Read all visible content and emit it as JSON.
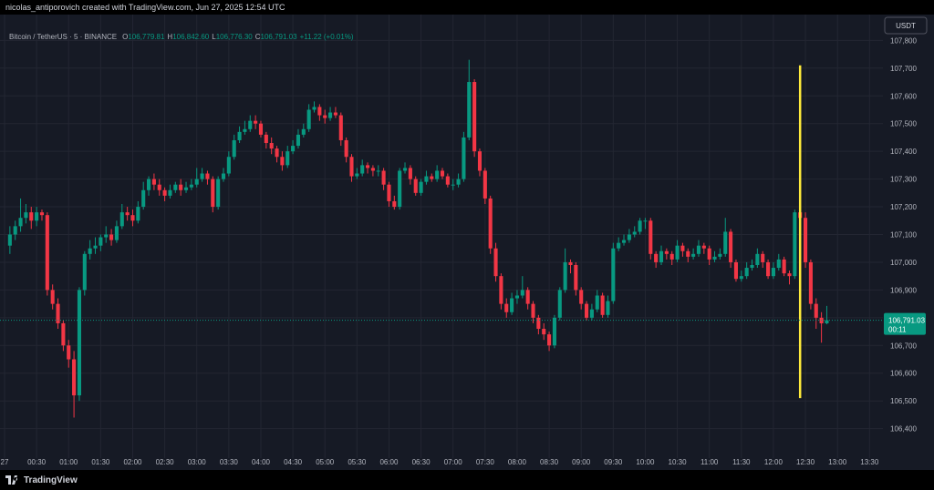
{
  "header": {
    "attribution": "nicolas_antiporovich created with TradingView.com, Jun 27, 2025 12:54 UTC"
  },
  "legend": {
    "symbol": "Bitcoin / TetherUS · 5 · BINANCE",
    "items": [
      {
        "key": "O",
        "value": "106,779.81"
      },
      {
        "key": "H",
        "value": "106,842.60"
      },
      {
        "key": "L",
        "value": "106,776.30"
      },
      {
        "key": "C",
        "value": "106,791.03"
      }
    ],
    "change": "+11.22 (+0.01%)"
  },
  "footer": {
    "brand": "TradingView"
  },
  "chart_data": {
    "type": "candlestick",
    "currency": "USDT",
    "up_color": "#089981",
    "down_color": "#f23645",
    "background": "#161a25",
    "grid_color": "#232632",
    "grid": true,
    "xlim": [
      "00:00",
      "13:40"
    ],
    "ylim": [
      106320,
      107880
    ],
    "xticks": [
      {
        "value": "00:00",
        "label": "27"
      },
      "00:30",
      "01:00",
      "01:30",
      "02:00",
      "02:30",
      "03:00",
      "03:30",
      "04:00",
      "04:30",
      "05:00",
      "05:30",
      "06:00",
      "06:30",
      "07:00",
      "07:30",
      "08:00",
      "08:30",
      "09:00",
      "09:30",
      "10:00",
      "10:30",
      "11:00",
      "11:30",
      "12:00",
      "12:30",
      "13:00",
      "13:30"
    ],
    "yticks": [
      {
        "value": 106400,
        "label": "106,400"
      },
      {
        "value": 106500,
        "label": "106,500"
      },
      {
        "value": 106600,
        "label": "106,600"
      },
      {
        "value": 106700,
        "label": "106,700"
      },
      {
        "value": 106800,
        "label": "106,800"
      },
      {
        "value": 106900,
        "label": "106,900"
      },
      {
        "value": 107000,
        "label": "107,000"
      },
      {
        "value": 107100,
        "label": "107,100"
      },
      {
        "value": 107200,
        "label": "107,200"
      },
      {
        "value": 107300,
        "label": "107,300"
      },
      {
        "value": 107400,
        "label": "107,400"
      },
      {
        "value": 107500,
        "label": "107,500"
      },
      {
        "value": 107600,
        "label": "107,600"
      },
      {
        "value": 107700,
        "label": "107,700"
      },
      {
        "value": 107800,
        "label": "107,800"
      }
    ],
    "last_price": {
      "value": 106791.03,
      "label": "106,791.03",
      "countdown": "00:11"
    },
    "vertical_line": {
      "x": "12:25",
      "from": 106510,
      "to": 107710,
      "color": "#ffeb3b"
    },
    "x": [
      "00:05",
      "00:10",
      "00:15",
      "00:20",
      "00:25",
      "00:30",
      "00:35",
      "00:40",
      "00:45",
      "00:50",
      "00:55",
      "01:00",
      "01:05",
      "01:10",
      "01:15",
      "01:20",
      "01:25",
      "01:30",
      "01:35",
      "01:40",
      "01:45",
      "01:50",
      "01:55",
      "02:00",
      "02:05",
      "02:10",
      "02:15",
      "02:20",
      "02:25",
      "02:30",
      "02:35",
      "02:40",
      "02:45",
      "02:50",
      "02:55",
      "03:00",
      "03:05",
      "03:10",
      "03:15",
      "03:20",
      "03:25",
      "03:30",
      "03:35",
      "03:40",
      "03:45",
      "03:50",
      "03:55",
      "04:00",
      "04:05",
      "04:10",
      "04:15",
      "04:20",
      "04:25",
      "04:30",
      "04:35",
      "04:40",
      "04:45",
      "04:50",
      "04:55",
      "05:00",
      "05:05",
      "05:10",
      "05:15",
      "05:20",
      "05:25",
      "05:30",
      "05:35",
      "05:40",
      "05:45",
      "05:50",
      "05:55",
      "06:00",
      "06:05",
      "06:10",
      "06:15",
      "06:20",
      "06:25",
      "06:30",
      "06:35",
      "06:40",
      "06:45",
      "06:50",
      "06:55",
      "07:00",
      "07:05",
      "07:10",
      "07:15",
      "07:20",
      "07:25",
      "07:30",
      "07:35",
      "07:40",
      "07:45",
      "07:50",
      "07:55",
      "08:00",
      "08:05",
      "08:10",
      "08:15",
      "08:20",
      "08:25",
      "08:30",
      "08:35",
      "08:40",
      "08:45",
      "08:50",
      "08:55",
      "09:00",
      "09:05",
      "09:10",
      "09:15",
      "09:20",
      "09:25",
      "09:30",
      "09:35",
      "09:40",
      "09:45",
      "09:50",
      "09:55",
      "10:00",
      "10:05",
      "10:10",
      "10:15",
      "10:20",
      "10:25",
      "10:30",
      "10:35",
      "10:40",
      "10:45",
      "10:50",
      "10:55",
      "11:00",
      "11:05",
      "11:10",
      "11:15",
      "11:20",
      "11:25",
      "11:30",
      "11:35",
      "11:40",
      "11:45",
      "11:50",
      "11:55",
      "12:00",
      "12:05",
      "12:10",
      "12:15",
      "12:20",
      "12:25",
      "12:30",
      "12:35",
      "12:40",
      "12:45",
      "12:50"
    ],
    "candles": [
      [
        107060,
        107130,
        107030,
        107100
      ],
      [
        107100,
        107150,
        107080,
        107130
      ],
      [
        107130,
        107230,
        107110,
        107160
      ],
      [
        107160,
        107210,
        107140,
        107180
      ],
      [
        107180,
        107200,
        107120,
        107150
      ],
      [
        107150,
        107200,
        107130,
        107180
      ],
      [
        107180,
        107190,
        107150,
        107170
      ],
      [
        107170,
        107180,
        106880,
        106900
      ],
      [
        106900,
        106920,
        106830,
        106850
      ],
      [
        106850,
        106870,
        106760,
        106780
      ],
      [
        106780,
        106790,
        106680,
        106700
      ],
      [
        106700,
        106720,
        106620,
        106650
      ],
      [
        106650,
        106680,
        106440,
        106520
      ],
      [
        106520,
        106910,
        106500,
        106900
      ],
      [
        106900,
        107040,
        106880,
        107030
      ],
      [
        107030,
        107080,
        107010,
        107050
      ],
      [
        107050,
        107090,
        107030,
        107060
      ],
      [
        107060,
        107100,
        107040,
        107090
      ],
      [
        107090,
        107130,
        107070,
        107100
      ],
      [
        107100,
        107120,
        107060,
        107080
      ],
      [
        107080,
        107150,
        107070,
        107130
      ],
      [
        107130,
        107210,
        107120,
        107180
      ],
      [
        107180,
        107200,
        107150,
        107170
      ],
      [
        107170,
        107190,
        107130,
        107150
      ],
      [
        107150,
        107220,
        107140,
        107200
      ],
      [
        107200,
        107290,
        107190,
        107260
      ],
      [
        107260,
        107310,
        107240,
        107300
      ],
      [
        107300,
        107320,
        107260,
        107280
      ],
      [
        107280,
        107300,
        107240,
        107260
      ],
      [
        107260,
        107270,
        107220,
        107240
      ],
      [
        107240,
        107280,
        107230,
        107260
      ],
      [
        107260,
        107290,
        107250,
        107280
      ],
      [
        107280,
        107300,
        107240,
        107260
      ],
      [
        107260,
        107290,
        107250,
        107270
      ],
      [
        107270,
        107300,
        107260,
        107280
      ],
      [
        107280,
        107340,
        107270,
        107300
      ],
      [
        107300,
        107340,
        107290,
        107320
      ],
      [
        107320,
        107330,
        107280,
        107300
      ],
      [
        107300,
        107310,
        107180,
        107200
      ],
      [
        107200,
        107310,
        107190,
        107300
      ],
      [
        107300,
        107340,
        107290,
        107320
      ],
      [
        107320,
        107400,
        107310,
        107380
      ],
      [
        107380,
        107460,
        107370,
        107440
      ],
      [
        107440,
        107490,
        107430,
        107470
      ],
      [
        107470,
        107510,
        107460,
        107480
      ],
      [
        107480,
        107530,
        107470,
        107510
      ],
      [
        107510,
        107530,
        107480,
        107500
      ],
      [
        107500,
        107510,
        107450,
        107460
      ],
      [
        107460,
        107470,
        107410,
        107430
      ],
      [
        107430,
        107450,
        107390,
        107410
      ],
      [
        107410,
        107420,
        107360,
        107380
      ],
      [
        107380,
        107400,
        107330,
        107350
      ],
      [
        107350,
        107420,
        107340,
        107400
      ],
      [
        107400,
        107440,
        107390,
        107420
      ],
      [
        107420,
        107480,
        107410,
        107460
      ],
      [
        107460,
        107500,
        107450,
        107480
      ],
      [
        107480,
        107570,
        107470,
        107550
      ],
      [
        107550,
        107580,
        107540,
        107560
      ],
      [
        107560,
        107570,
        107510,
        107530
      ],
      [
        107530,
        107550,
        107500,
        107520
      ],
      [
        107520,
        107560,
        107510,
        107540
      ],
      [
        107540,
        107560,
        107520,
        107530
      ],
      [
        107530,
        107540,
        107420,
        107440
      ],
      [
        107440,
        107450,
        107360,
        107380
      ],
      [
        107380,
        107390,
        107290,
        107310
      ],
      [
        107310,
        107340,
        107300,
        107320
      ],
      [
        107320,
        107370,
        107310,
        107350
      ],
      [
        107350,
        107360,
        107320,
        107340
      ],
      [
        107340,
        107350,
        107310,
        107330
      ],
      [
        107330,
        107350,
        107310,
        107330
      ],
      [
        107330,
        107340,
        107260,
        107280
      ],
      [
        107280,
        107290,
        107200,
        107220
      ],
      [
        107220,
        107240,
        107190,
        107200
      ],
      [
        107200,
        107340,
        107190,
        107330
      ],
      [
        107330,
        107360,
        107320,
        107340
      ],
      [
        107340,
        107350,
        107280,
        107300
      ],
      [
        107300,
        107310,
        107240,
        107250
      ],
      [
        107250,
        107300,
        107240,
        107290
      ],
      [
        107290,
        107330,
        107280,
        107310
      ],
      [
        107310,
        107320,
        107290,
        107300
      ],
      [
        107300,
        107350,
        107290,
        107330
      ],
      [
        107330,
        107340,
        107300,
        107310
      ],
      [
        107310,
        107320,
        107270,
        107280
      ],
      [
        107280,
        107300,
        107260,
        107280
      ],
      [
        107280,
        107320,
        107270,
        107300
      ],
      [
        107300,
        107470,
        107290,
        107450
      ],
      [
        107450,
        107730,
        107440,
        107650
      ],
      [
        107650,
        107660,
        107380,
        107400
      ],
      [
        107400,
        107410,
        107310,
        107330
      ],
      [
        107330,
        107340,
        107210,
        107230
      ],
      [
        107230,
        107240,
        107030,
        107050
      ],
      [
        107050,
        107070,
        106930,
        106950
      ],
      [
        106950,
        106960,
        106830,
        106850
      ],
      [
        106850,
        106870,
        106800,
        106820
      ],
      [
        106820,
        106890,
        106810,
        106870
      ],
      [
        106870,
        106900,
        106850,
        106880
      ],
      [
        106880,
        106950,
        106870,
        106900
      ],
      [
        106900,
        106910,
        106830,
        106850
      ],
      [
        106850,
        106860,
        106780,
        106800
      ],
      [
        106800,
        106810,
        106740,
        106760
      ],
      [
        106760,
        106780,
        106720,
        106740
      ],
      [
        106740,
        106750,
        106680,
        106700
      ],
      [
        106700,
        106810,
        106690,
        106800
      ],
      [
        106800,
        106910,
        106790,
        106900
      ],
      [
        106900,
        107050,
        106890,
        107000
      ],
      [
        107000,
        107010,
        106960,
        106990
      ],
      [
        106990,
        107000,
        106880,
        106900
      ],
      [
        106900,
        106910,
        106830,
        106850
      ],
      [
        106850,
        106860,
        106790,
        106800
      ],
      [
        106800,
        106850,
        106790,
        106830
      ],
      [
        106830,
        106900,
        106820,
        106880
      ],
      [
        106880,
        106890,
        106800,
        106810
      ],
      [
        106810,
        106880,
        106800,
        106860
      ],
      [
        106860,
        107070,
        106850,
        107050
      ],
      [
        107050,
        107090,
        107040,
        107070
      ],
      [
        107070,
        107100,
        107060,
        107080
      ],
      [
        107080,
        107120,
        107070,
        107100
      ],
      [
        107100,
        107130,
        107090,
        107110
      ],
      [
        107110,
        107160,
        107100,
        107150
      ],
      [
        107150,
        107160,
        107120,
        107150
      ],
      [
        107150,
        107160,
        107010,
        107030
      ],
      [
        107030,
        107040,
        106980,
        107000
      ],
      [
        107000,
        107060,
        106990,
        107040
      ],
      [
        107040,
        107050,
        107010,
        107030
      ],
      [
        107030,
        107040,
        106990,
        107010
      ],
      [
        107010,
        107080,
        107000,
        107060
      ],
      [
        107060,
        107070,
        107020,
        107040
      ],
      [
        107040,
        107050,
        107000,
        107020
      ],
      [
        107020,
        107050,
        107010,
        107030
      ],
      [
        107030,
        107080,
        107020,
        107060
      ],
      [
        107060,
        107070,
        107030,
        107050
      ],
      [
        107050,
        107060,
        106990,
        107010
      ],
      [
        107010,
        107040,
        107000,
        107020
      ],
      [
        107020,
        107050,
        107010,
        107030
      ],
      [
        107030,
        107160,
        107020,
        107110
      ],
      [
        107110,
        107120,
        106980,
        107000
      ],
      [
        107000,
        107010,
        106930,
        106940
      ],
      [
        106940,
        106970,
        106930,
        106950
      ],
      [
        106950,
        107000,
        106940,
        106980
      ],
      [
        106980,
        107010,
        106970,
        106990
      ],
      [
        106990,
        107050,
        106980,
        107030
      ],
      [
        107030,
        107040,
        106980,
        107000
      ],
      [
        107000,
        107010,
        106940,
        106950
      ],
      [
        106950,
        107000,
        106940,
        106980
      ],
      [
        106980,
        107030,
        106970,
        107010
      ],
      [
        107010,
        107020,
        106950,
        106960
      ],
      [
        106960,
        106970,
        106920,
        106950
      ],
      [
        106950,
        107190,
        106940,
        107180
      ],
      [
        107180,
        107200,
        107140,
        107160
      ],
      [
        107160,
        107180,
        106980,
        107000
      ],
      [
        107000,
        107010,
        106830,
        106850
      ],
      [
        106850,
        106870,
        106760,
        106800
      ],
      [
        106800,
        106820,
        106710,
        106779.81
      ],
      [
        106779.81,
        106842.6,
        106776.3,
        106791.03
      ]
    ]
  }
}
